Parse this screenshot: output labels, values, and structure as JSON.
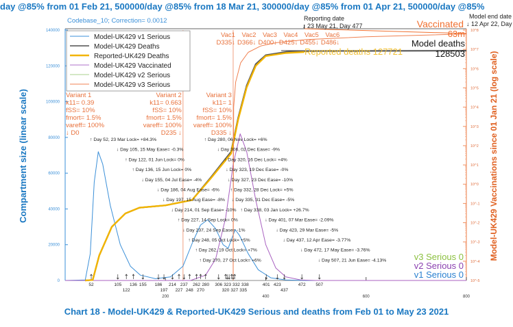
{
  "header": {
    "top_title": "day @85% from 01 Feb 21, 500000/day @85% from 18 Mar 21, 300000/day @85% from 01 Apr 21, 500000/day @85%",
    "codebase": "Codebase_10; Correction= 0.0012"
  },
  "colors": {
    "title": "#1a78c2",
    "v1_serious": "#3a8fd8",
    "model_deaths": "#5a5a5a",
    "reported_deaths": "#f2b400",
    "vaccinated": "#c9a0dc",
    "v2_serious": "#a8d08d",
    "v3_serious": "#f08050",
    "variant": "#e8703a",
    "right_axis": "#e06020"
  },
  "chart_data": {
    "type": "line",
    "title": "Chart 18 - Model-UK429 & Reported-UK429 Serious and deaths from Feb 01 to May 23 2021",
    "ylabel": "Compartment size (linear scale)",
    "y2label": "Model-UK429 Vaccinations since 01 Jan 21 (log scale)",
    "xlim": [
      0,
      800
    ],
    "ylim": [
      0,
      140000
    ],
    "y2lim": [
      1e-05,
      100000000.0
    ],
    "y2scale": "log",
    "x_ticks": [
      "200",
      "400",
      "600",
      "800"
    ],
    "y_ticks": [
      "0",
      "20000",
      "40000",
      "60000",
      "80000",
      "100000",
      "120000",
      "140000"
    ],
    "y2_ticks": [
      "10^-5",
      "10^-4",
      "10^-3",
      "10^-2",
      "10^-1",
      "10^0",
      "10^1",
      "10^2",
      "10^3",
      "10^4",
      "10^5",
      "10^6",
      "10^7",
      "10^8"
    ],
    "legend": {
      "placement": "top-left",
      "items": [
        "Model-UK429 v1 Serious",
        "Model-UK429 Deaths",
        "Reported-UK429 Deaths",
        "Model-UK429 Vaccinated",
        "Model-UK429 v2 Serious",
        "Model-UK429 v3 Serious"
      ]
    },
    "series": [
      {
        "name": "Model-UK429 v1 Serious",
        "axis": "left",
        "points": [
          [
            0,
            0
          ],
          [
            40,
            300
          ],
          [
            50,
            15000
          ],
          [
            58,
            55000
          ],
          [
            66,
            72000
          ],
          [
            75,
            65000
          ],
          [
            90,
            42000
          ],
          [
            110,
            20000
          ],
          [
            130,
            8000
          ],
          [
            150,
            3000
          ],
          [
            180,
            1000
          ],
          [
            210,
            2000
          ],
          [
            235,
            8000
          ],
          [
            255,
            22000
          ],
          [
            270,
            31000
          ],
          [
            284,
            34000
          ],
          [
            300,
            29000
          ],
          [
            315,
            20000
          ],
          [
            325,
            18000
          ],
          [
            333,
            24000
          ],
          [
            339,
            28500
          ],
          [
            348,
            25000
          ],
          [
            365,
            15000
          ],
          [
            385,
            6000
          ],
          [
            410,
            1500
          ],
          [
            440,
            300
          ],
          [
            480,
            0
          ],
          [
            800,
            0
          ]
        ]
      },
      {
        "name": "Model-UK429 v2 Serious",
        "axis": "left",
        "points": [
          [
            0,
            0
          ],
          [
            250,
            0
          ],
          [
            280,
            3000
          ],
          [
            300,
            12000
          ],
          [
            320,
            35000
          ],
          [
            335,
            65000
          ],
          [
            349,
            82000
          ],
          [
            362,
            72000
          ],
          [
            380,
            45000
          ],
          [
            400,
            20000
          ],
          [
            420,
            7000
          ],
          [
            440,
            2000
          ],
          [
            470,
            300
          ],
          [
            500,
            0
          ],
          [
            800,
            0
          ]
        ]
      },
      {
        "name": "Model-UK429 Deaths",
        "axis": "left",
        "points": [
          [
            40,
            0
          ],
          [
            55,
            300
          ],
          [
            68,
            14000
          ],
          [
            93,
            30000
          ],
          [
            120,
            37500
          ],
          [
            148,
            40700
          ],
          [
            200,
            42000
          ],
          [
            253,
            45000
          ],
          [
            290,
            57500
          ],
          [
            331,
            72000
          ],
          [
            345,
            91000
          ],
          [
            362,
            109000
          ],
          [
            380,
            121000
          ],
          [
            400,
            126000
          ],
          [
            440,
            127800
          ],
          [
            477,
            128300
          ],
          [
            800,
            128503
          ]
        ]
      },
      {
        "name": "Reported-UK429 Deaths",
        "axis": "left",
        "points": [
          [
            40,
            0
          ],
          [
            55,
            300
          ],
          [
            68,
            14000
          ],
          [
            93,
            30000
          ],
          [
            120,
            37500
          ],
          [
            148,
            40700
          ],
          [
            200,
            42000
          ],
          [
            253,
            45000
          ],
          [
            290,
            57000
          ],
          [
            331,
            71000
          ],
          [
            345,
            90000
          ],
          [
            362,
            108000
          ],
          [
            380,
            120000
          ],
          [
            400,
            125500
          ],
          [
            440,
            127200
          ],
          [
            477,
            127721
          ]
        ]
      },
      {
        "name": "Model-UK429 Vaccinated",
        "axis": "right",
        "points": [
          [
            335,
            1e-05
          ],
          [
            335.5,
            1
          ],
          [
            336,
            10000
          ],
          [
            340,
            200000
          ],
          [
            350,
            2000000
          ],
          [
            365,
            7000000
          ],
          [
            390,
            15000000
          ],
          [
            420,
            22000000
          ],
          [
            480,
            32000000
          ],
          [
            600,
            45000000
          ],
          [
            800,
            63000000
          ]
        ]
      }
    ],
    "variants": [
      {
        "name": "Variant 1",
        "k11": "k11= 0.39",
        "fss": "fSS= 10%",
        "fmort": "fmort= 1.5%",
        "vareff": "vareff= 100%",
        "day_label": "↓ D0",
        "day": 0
      },
      {
        "name": "Variant 2",
        "k11": "k11= 0.663",
        "fss": "fSS= 10%",
        "fmort": "fmort= 1.5%",
        "vareff": "vareff= 100%",
        "day_label": "D235 ↓",
        "day": 235
      },
      {
        "name": "Variant 3",
        "k11": "k11= 1",
        "fss": "fSS= 10%",
        "fmort": "fmort= 1.5%",
        "vareff": "vareff= 100%",
        "day_label": "D335 ↓",
        "day": 335
      }
    ],
    "vaccinations": [
      {
        "name": "Vac1",
        "day_label": "D335↓",
        "day": 335
      },
      {
        "name": "Vac2",
        "day_label": "D366↓",
        "day": 366
      },
      {
        "name": "Vac3",
        "day_label": "D400↓",
        "day": 400
      },
      {
        "name": "Vac4",
        "day_label": "D425↓",
        "day": 425
      },
      {
        "name": "Vac5",
        "day_label": "D455↓",
        "day": 455
      },
      {
        "name": "Vac6",
        "day_label": "D486↓",
        "day": 486
      }
    ],
    "interventions": [
      {
        "day": 52,
        "arrow": "↑",
        "text": "Day 52, 23 Mar Lock= +84.3%",
        "col": 0
      },
      {
        "day": 105,
        "arrow": "↓",
        "text": "Day 105, 15 May Ease= -0.3%",
        "col": 0
      },
      {
        "day": 122,
        "arrow": "↑",
        "text": "Day 122, 01 Jun Lock= 0%",
        "col": 0
      },
      {
        "day": 136,
        "arrow": "↑",
        "text": "Day 136, 15 Jun Lock= 0%",
        "col": 0
      },
      {
        "day": 155,
        "arrow": "↓",
        "text": "Day 155, 04 Jul Ease= -4%",
        "col": 0
      },
      {
        "day": 186,
        "arrow": "↓",
        "text": "Day 186, 04 Aug Ease= -6%",
        "col": 0
      },
      {
        "day": 197,
        "arrow": "↓",
        "text": "Day 197, 15 Aug Ease= -8%",
        "col": 0
      },
      {
        "day": 214,
        "arrow": "↓",
        "text": "Day 214, 01 Sep Ease= -10%",
        "col": 0
      },
      {
        "day": 227,
        "arrow": "↑",
        "text": "Day 227, 14 Sep Lock= 0%",
        "col": 0
      },
      {
        "day": 237,
        "arrow": "↓",
        "text": "Day 237, 24 Sep Ease= -1%",
        "col": 0
      },
      {
        "day": 248,
        "arrow": "↑",
        "text": "Day 248, 05 Oct Lock= +5%",
        "col": 0
      },
      {
        "day": 262,
        "arrow": "↑",
        "text": "Day 262, 19 Oct Lock= +7%",
        "col": 0
      },
      {
        "day": 270,
        "arrow": "↑",
        "text": "Day 270, 27 Oct Lock= +6%",
        "col": 0
      },
      {
        "day": 280,
        "arrow": "↑",
        "text": "Day 280, 06 Nov Lock= +6%",
        "col": 1
      },
      {
        "day": 306,
        "arrow": "↓",
        "text": "Day 306, 02 Dec Ease= -9%",
        "col": 1
      },
      {
        "day": 320,
        "arrow": "↑",
        "text": "Day 320, 16 Dec Lock= +4%",
        "col": 1
      },
      {
        "day": 323,
        "arrow": "↓",
        "text": "Day 323, 19 Dec Ease= -0%",
        "col": 1
      },
      {
        "day": 327,
        "arrow": "↓",
        "text": "Day 327, 23 Dec Ease= -10%",
        "col": 1
      },
      {
        "day": 332,
        "arrow": "↑",
        "text": "Day 332, 28 Dec Lock= +5%",
        "col": 1
      },
      {
        "day": 335,
        "arrow": "↓",
        "text": "Day 335, 31 Dec Ease= -5%",
        "col": 1
      },
      {
        "day": 338,
        "arrow": "↑",
        "text": "Day 338, 03 Jan Lock= +26.7%",
        "col": 1
      },
      {
        "day": 401,
        "arrow": "↓",
        "text": "Day 401, 07 Mar Ease= -2.09%",
        "col": 1
      },
      {
        "day": 423,
        "arrow": "↓",
        "text": "Day 423, 29 Mar Ease= -5%",
        "col": 1
      },
      {
        "day": 437,
        "arrow": "↓",
        "text": "Day 437, 12 Apr Ease= -3.77%",
        "col": 1
      },
      {
        "day": 472,
        "arrow": "↓",
        "text": "Day 472, 17 May Ease= -3.76%",
        "col": 1
      },
      {
        "day": 507,
        "arrow": "↓",
        "text": "Day 507, 21 Jun Ease= -4.13%",
        "col": 1
      }
    ],
    "annotations": {
      "reporting_date_label": "Reporting date",
      "reporting_date": "↓ 23 May 21, Day 477",
      "reporting_day": 477,
      "model_end_label": "Model end date",
      "model_end_date": "↓ 12 Apr 22, Day 800",
      "vaccinated_label": "Vaccinated",
      "vaccinated_value": "63m",
      "model_deaths_label": "Model deaths",
      "model_deaths_value": "128503",
      "reported_deaths": "Reported deaths 127721",
      "v3_serious": "v3 Serious 0",
      "v2_serious": "v2 Serious 0",
      "v1_serious": "v1 Serious 0"
    }
  }
}
